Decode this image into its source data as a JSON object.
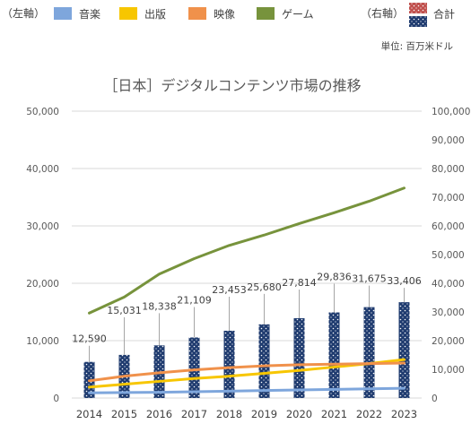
{
  "chart_data": {
    "type": "bar",
    "title": "［日本］デジタルコンテンツ市場の推移",
    "unit_label": "単位: 百万米ドル",
    "left_axis_label": "（左軸）",
    "right_axis_label": "（右軸）",
    "categories": [
      "2014",
      "2015",
      "2016",
      "2017",
      "2018",
      "2019",
      "2020",
      "2021",
      "2022",
      "2023"
    ],
    "ylim_left": [
      0,
      50000
    ],
    "ylim_right": [
      0,
      100000
    ],
    "yticks_left": [
      "0",
      "10,000",
      "20,000",
      "30,000",
      "40,000",
      "50,000"
    ],
    "yticks_right": [
      "0",
      "10,000",
      "20,000",
      "30,000",
      "40,000",
      "50,000",
      "60,000",
      "70,000",
      "80,000",
      "90,000",
      "100,000"
    ],
    "bar_series": {
      "name": "合計",
      "axis": "right",
      "values": [
        12590,
        15031,
        18338,
        21109,
        23453,
        25680,
        27814,
        29836,
        31675,
        33406
      ],
      "data_labels": [
        "12,590",
        "15,031",
        "18,338",
        "21,109",
        "23,453",
        "25,680",
        "27,814",
        "29,836",
        "31,675",
        "33,406"
      ]
    },
    "line_series": [
      {
        "name": "音楽",
        "axis": "left",
        "color": "#7ea6dc",
        "values": [
          900,
          950,
          1000,
          1100,
          1200,
          1300,
          1400,
          1500,
          1600,
          1700
        ]
      },
      {
        "name": "出版",
        "axis": "left",
        "color": "#f7c600",
        "values": [
          1900,
          2400,
          2900,
          3400,
          3800,
          4300,
          4800,
          5400,
          6000,
          6700
        ]
      },
      {
        "name": "映像",
        "axis": "left",
        "color": "#f0914b",
        "values": [
          3000,
          3800,
          4400,
          4900,
          5300,
          5600,
          5800,
          5900,
          6000,
          6100
        ]
      },
      {
        "name": "ゲーム",
        "axis": "left",
        "color": "#77933c",
        "values": [
          14800,
          17600,
          21600,
          24300,
          26600,
          28400,
          30400,
          32300,
          34300,
          36600
        ]
      }
    ],
    "grid": true,
    "legend_position": "top"
  }
}
